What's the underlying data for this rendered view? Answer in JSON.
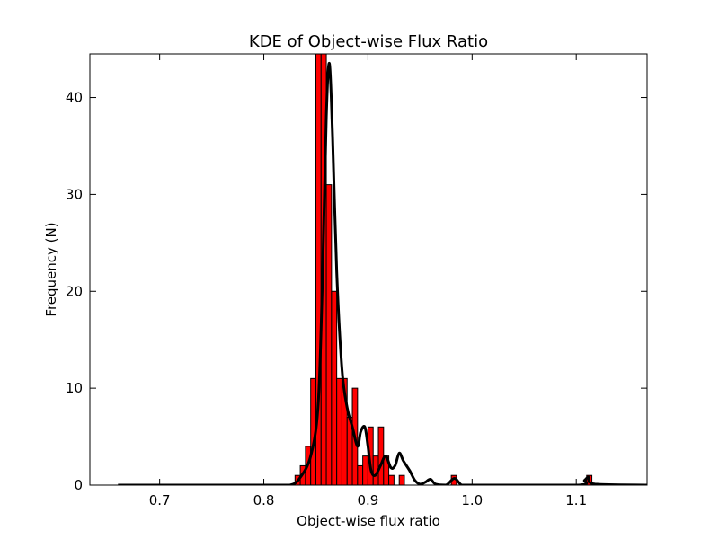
{
  "chart_data": {
    "type": "bar",
    "title": "KDE of Object-wise Flux Ratio",
    "xlabel": "Object-wise flux ratio",
    "ylabel": "Frequency (N)",
    "xlim": [
      0.633,
      1.168
    ],
    "ylim": [
      0,
      44.5
    ],
    "x_ticks": [
      0.7,
      0.8,
      0.9,
      1.0,
      1.1
    ],
    "y_ticks": [
      0,
      10,
      20,
      30,
      40
    ],
    "grid": false,
    "bar_color": "#ff0000",
    "bar_edge_color": "#000000",
    "line_color": "#000000",
    "histogram": {
      "bin_width": 0.005,
      "bins_start": [
        0.83,
        0.835,
        0.84,
        0.845,
        0.85,
        0.855,
        0.86,
        0.865,
        0.87,
        0.875,
        0.88,
        0.885,
        0.89,
        0.895,
        0.9,
        0.905,
        0.91,
        0.915,
        0.92,
        0.925,
        0.93,
        0.935,
        0.94,
        0.945,
        0.95,
        0.955,
        0.96,
        0.965,
        0.97,
        0.975,
        0.98,
        0.985,
        1.11
      ],
      "counts": [
        1,
        2,
        4,
        11,
        45,
        45,
        31,
        20,
        11,
        11,
        7,
        10,
        2,
        3,
        6,
        3,
        6,
        3,
        1,
        0,
        1,
        0,
        0,
        0,
        0,
        0,
        0,
        0,
        0,
        0,
        1,
        0,
        1
      ]
    },
    "kde": {
      "x": [
        0.66,
        0.8,
        0.825,
        0.835,
        0.845,
        0.852,
        0.856,
        0.86,
        0.863,
        0.866,
        0.87,
        0.875,
        0.88,
        0.885,
        0.89,
        0.893,
        0.897,
        0.9,
        0.903,
        0.907,
        0.912,
        0.917,
        0.922,
        0.926,
        0.93,
        0.934,
        0.94,
        0.945,
        0.95,
        0.955,
        0.96,
        0.965,
        0.975,
        0.983,
        0.99,
        1.0,
        1.1,
        1.108,
        1.112,
        1.118,
        1.168
      ],
      "y": [
        0,
        0,
        0,
        0.8,
        3,
        8,
        20,
        38,
        43.5,
        36,
        22,
        12,
        8,
        6,
        4,
        5.5,
        6,
        4,
        1.5,
        1,
        2,
        3,
        1.8,
        2,
        3.3,
        2.5,
        1.5,
        0.5,
        0.1,
        0.3,
        0.6,
        0.1,
        0,
        0.7,
        0,
        0,
        0,
        0.5,
        0.8,
        0.1,
        0
      ]
    }
  }
}
